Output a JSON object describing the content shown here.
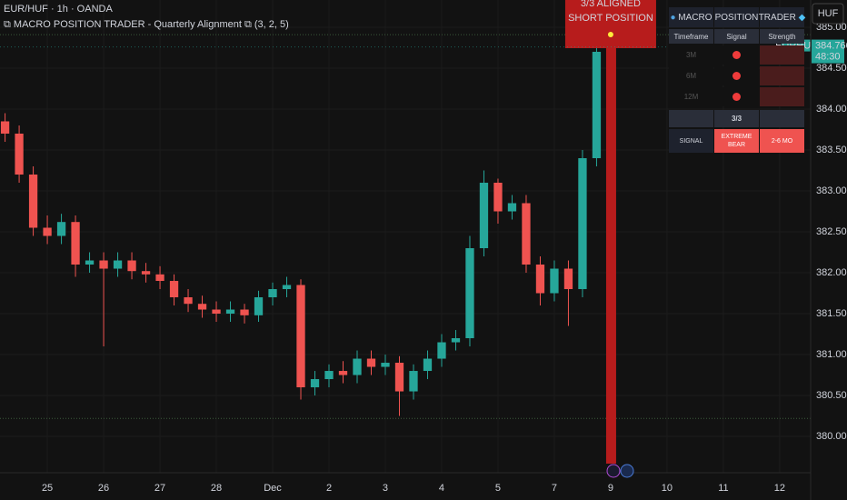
{
  "chart_data": {
    "type": "candlestick",
    "title": "EUR/HUF · 1h · OANDA",
    "indicator": "⧉ MACRO POSITION TRADER - Quarterly Alignment ⧉ (3, 2, 5)",
    "currency_button": "HUF",
    "x": [
      -0.75,
      -0.5,
      -0.25,
      0,
      0.25,
      0.5,
      0.75,
      1,
      1.25,
      1.5,
      1.75,
      2,
      2.25,
      2.5,
      2.75,
      3,
      3.25,
      3.5,
      3.75,
      4,
      4.25,
      4.5,
      4.75,
      5,
      5.25,
      5.5,
      5.75,
      6,
      6.25,
      6.5,
      6.75,
      7,
      7.25,
      7.5,
      7.75,
      8,
      8.25,
      8.5,
      8.75,
      9,
      9.25,
      9.5,
      9.75,
      10
    ],
    "open": [
      383.85,
      383.7,
      383.2,
      382.55,
      382.45,
      382.62,
      382.1,
      382.15,
      382.05,
      382.15,
      382.02,
      381.98,
      381.9,
      381.7,
      381.62,
      381.55,
      381.5,
      381.55,
      381.48,
      381.7,
      381.8,
      381.85,
      380.6,
      380.7,
      380.8,
      380.75,
      380.95,
      380.85,
      380.9,
      380.55,
      380.8,
      380.95,
      381.15,
      381.2,
      382.3,
      383.1,
      382.75,
      382.85,
      382.1,
      381.75,
      382.05,
      381.8,
      383.4,
      384.7
    ],
    "high": [
      383.95,
      383.8,
      383.3,
      382.7,
      382.72,
      382.7,
      382.25,
      382.25,
      382.25,
      382.25,
      382.12,
      382.08,
      381.98,
      381.8,
      381.72,
      381.65,
      381.65,
      381.62,
      381.78,
      381.88,
      381.95,
      381.92,
      380.8,
      380.88,
      380.92,
      381.05,
      381.05,
      381.0,
      380.98,
      380.88,
      381.05,
      381.25,
      381.3,
      382.45,
      383.25,
      383.15,
      382.95,
      382.95,
      382.2,
      382.15,
      382.15,
      383.5,
      384.85,
      385.0
    ],
    "low": [
      383.6,
      383.1,
      382.45,
      382.35,
      382.35,
      381.95,
      382.0,
      381.1,
      381.95,
      381.92,
      381.88,
      381.8,
      381.6,
      381.52,
      381.45,
      381.4,
      381.4,
      381.38,
      381.4,
      381.6,
      381.7,
      380.45,
      380.5,
      380.6,
      380.65,
      380.65,
      380.75,
      380.75,
      380.25,
      380.45,
      380.7,
      380.85,
      381.05,
      381.1,
      382.2,
      382.6,
      382.65,
      382.0,
      381.6,
      381.65,
      381.35,
      381.7,
      383.3,
      384.55
    ],
    "close": [
      383.7,
      383.2,
      382.55,
      382.45,
      382.62,
      382.1,
      382.15,
      382.05,
      382.15,
      382.02,
      381.98,
      381.9,
      381.7,
      381.62,
      381.55,
      381.5,
      381.55,
      381.48,
      381.7,
      381.8,
      381.85,
      380.6,
      380.7,
      380.8,
      380.75,
      380.95,
      380.85,
      380.9,
      380.55,
      380.8,
      380.95,
      381.15,
      381.2,
      382.3,
      383.1,
      382.75,
      382.85,
      382.1,
      381.75,
      382.05,
      381.8,
      383.4,
      384.7,
      384.76
    ],
    "up_color": "#26a69a",
    "down_color": "#ef5350",
    "xlim": [
      -0.84,
      13.55
    ],
    "xticks": [
      {
        "value": 0,
        "label": "25"
      },
      {
        "value": 1,
        "label": "26"
      },
      {
        "value": 2,
        "label": "27"
      },
      {
        "value": 3,
        "label": "28"
      },
      {
        "value": 4,
        "label": "Dec"
      },
      {
        "value": 5,
        "label": "2"
      },
      {
        "value": 6,
        "label": "3"
      },
      {
        "value": 7,
        "label": "4"
      },
      {
        "value": 8,
        "label": "5"
      },
      {
        "value": 9,
        "label": "7"
      },
      {
        "value": 10,
        "label": "9"
      },
      {
        "value": 11,
        "label": "10"
      },
      {
        "value": 12,
        "label": "11"
      },
      {
        "value": 13,
        "label": "12"
      }
    ],
    "ylim": [
      379.556,
      385.333
    ],
    "yticks": [
      {
        "value": 385,
        "label": "385.000"
      },
      {
        "value": 384.5,
        "label": "384.500"
      },
      {
        "value": 384,
        "label": "384.000"
      },
      {
        "value": 383.5,
        "label": "383.500"
      },
      {
        "value": 383,
        "label": "383.000"
      },
      {
        "value": 382.5,
        "label": "382.500"
      },
      {
        "value": 382,
        "label": "382.000"
      },
      {
        "value": 381.5,
        "label": "381.500"
      },
      {
        "value": 381,
        "label": "381.000"
      },
      {
        "value": 380.5,
        "label": "380.500"
      },
      {
        "value": 380,
        "label": "380.000"
      }
    ],
    "grid": true,
    "levels": [
      384.91,
      380.22
    ],
    "signal_x": 10,
    "banner": [
      "3/3 ALIGNED",
      "SHORT POSITION"
    ],
    "price_tag": {
      "symbol": "EURHUF",
      "price": 384.76,
      "price_label": "384.760",
      "countdown": "48:30"
    },
    "panel": {
      "headers": [
        "MACRO",
        "POSITION",
        "TRADER"
      ],
      "columns": [
        "Timeframe",
        "Signal",
        "Strength"
      ],
      "timeframes": [
        "3M",
        "6M",
        "12M"
      ],
      "score": "3/3",
      "signal_label": "SIGNAL",
      "signal": "EXTREME BEAR",
      "horizon": "2-6 MO"
    }
  }
}
